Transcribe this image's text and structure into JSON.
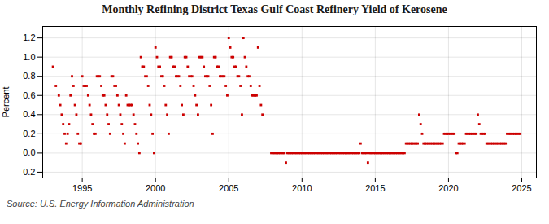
{
  "chart_data": {
    "type": "scatter",
    "title": "Monthly Refining District Texas Gulf Coast Refinery Yield of Kerosene",
    "ylabel": "Percent",
    "source": "Source: U.S. Energy Information Administration",
    "color": "#cc0000",
    "marker": "square",
    "grid": true,
    "xlim": [
      1992.3,
      2026.0
    ],
    "ylim": [
      -0.26,
      1.32
    ],
    "xticks": [
      1995,
      2000,
      2005,
      2010,
      2015,
      2020,
      2025
    ],
    "yticks": [
      -0.2,
      {
        "value": 0.0,
        "label": "0.0"
      },
      0.2,
      0.4,
      0.6,
      0.8,
      {
        "value": 1.0,
        "label": "1.0"
      },
      1.2
    ],
    "x": [
      1993.0,
      1993.2,
      1993.4,
      1993.5,
      1993.6,
      1993.7,
      1993.8,
      1993.9,
      1994.0,
      1994.1,
      1994.2,
      1994.3,
      1994.4,
      1994.5,
      1994.6,
      1994.7,
      1994.8,
      1994.9,
      1995.0,
      1995.1,
      1995.2,
      1995.3,
      1995.4,
      1995.5,
      1995.6,
      1995.7,
      1995.8,
      1995.9,
      1996.0,
      1996.1,
      1996.2,
      1996.3,
      1996.4,
      1996.5,
      1996.6,
      1996.7,
      1996.8,
      1996.9,
      1997.0,
      1997.1,
      1997.2,
      1997.3,
      1997.4,
      1997.5,
      1997.6,
      1997.7,
      1997.8,
      1997.9,
      1998.0,
      1998.1,
      1998.2,
      1998.3,
      1998.4,
      1998.5,
      1998.6,
      1998.7,
      1998.8,
      1998.9,
      1999.0,
      1999.1,
      1999.2,
      1999.3,
      1999.4,
      1999.5,
      1999.6,
      1999.7,
      1999.8,
      1999.9,
      2000.0,
      2000.1,
      2000.2,
      2000.3,
      2000.4,
      2000.5,
      2000.6,
      2000.7,
      2000.8,
      2000.9,
      2001.0,
      2001.1,
      2001.2,
      2001.3,
      2001.4,
      2001.5,
      2001.6,
      2001.7,
      2001.8,
      2001.9,
      2002.0,
      2002.1,
      2002.2,
      2002.3,
      2002.4,
      2002.5,
      2002.6,
      2002.7,
      2002.8,
      2002.9,
      2003.0,
      2003.1,
      2003.2,
      2003.3,
      2003.4,
      2003.5,
      2003.6,
      2003.7,
      2003.8,
      2003.9,
      2004.0,
      2004.1,
      2004.2,
      2004.3,
      2004.4,
      2004.5,
      2004.6,
      2004.7,
      2004.8,
      2004.9,
      2005.0,
      2005.1,
      2005.2,
      2005.3,
      2005.4,
      2005.5,
      2005.6,
      2005.7,
      2005.8,
      2005.9,
      2006.0,
      2006.1,
      2006.2,
      2006.3,
      2006.4,
      2006.5,
      2006.6,
      2006.7,
      2006.8,
      2006.9,
      2007.0,
      2007.1,
      2007.2,
      2007.3,
      2007.9,
      2008.0,
      2008.1,
      2008.2,
      2008.3,
      2008.4,
      2008.5,
      2008.6,
      2008.7,
      2008.8,
      2008.9,
      2009.0,
      2009.1,
      2009.2,
      2009.3,
      2009.4,
      2009.5,
      2009.6,
      2009.7,
      2009.8,
      2009.9,
      2010.0,
      2010.1,
      2010.2,
      2010.3,
      2010.4,
      2010.5,
      2010.6,
      2010.7,
      2010.8,
      2010.9,
      2011.0,
      2011.1,
      2011.2,
      2011.3,
      2011.4,
      2011.5,
      2011.6,
      2011.7,
      2011.8,
      2011.9,
      2012.0,
      2012.1,
      2012.2,
      2012.3,
      2012.4,
      2012.5,
      2012.6,
      2012.7,
      2012.8,
      2012.9,
      2013.0,
      2013.1,
      2013.2,
      2013.3,
      2013.4,
      2013.5,
      2013.6,
      2013.7,
      2013.8,
      2013.9,
      2014.0,
      2014.1,
      2014.2,
      2014.3,
      2014.4,
      2014.5,
      2014.6,
      2014.7,
      2014.8,
      2014.9,
      2015.0,
      2015.1,
      2015.2,
      2015.3,
      2015.4,
      2015.5,
      2015.6,
      2015.7,
      2015.8,
      2015.9,
      2016.0,
      2016.1,
      2016.2,
      2016.3,
      2016.4,
      2016.5,
      2016.6,
      2016.7,
      2016.8,
      2016.9,
      2017.0,
      2017.1,
      2017.2,
      2017.3,
      2017.4,
      2017.5,
      2017.6,
      2017.7,
      2017.8,
      2017.9,
      2018.0,
      2018.1,
      2018.2,
      2018.3,
      2018.4,
      2018.5,
      2018.6,
      2018.7,
      2018.8,
      2018.9,
      2019.0,
      2019.1,
      2019.2,
      2019.3,
      2019.4,
      2019.5,
      2019.6,
      2019.7,
      2019.8,
      2019.9,
      2020.0,
      2020.1,
      2020.2,
      2020.3,
      2020.4,
      2020.5,
      2020.6,
      2020.7,
      2020.8,
      2020.9,
      2021.0,
      2021.1,
      2021.2,
      2021.3,
      2021.4,
      2021.5,
      2021.6,
      2021.7,
      2021.8,
      2021.9,
      2022.0,
      2022.1,
      2022.2,
      2022.3,
      2022.4,
      2022.5,
      2022.6,
      2022.7,
      2022.8,
      2022.9,
      2023.0,
      2023.1,
      2023.2,
      2023.3,
      2023.4,
      2023.5,
      2023.6,
      2023.7,
      2023.8,
      2023.9,
      2024.0,
      2024.1,
      2024.2,
      2024.3,
      2024.4,
      2024.5,
      2024.6,
      2024.7,
      2024.8,
      2024.9
    ],
    "values": [
      0.9,
      0.7,
      0.6,
      0.5,
      0.4,
      0.3,
      0.2,
      0.1,
      0.2,
      0.3,
      0.6,
      0.8,
      0.7,
      0.5,
      0.4,
      0.2,
      0.1,
      0.1,
      0.8,
      0.7,
      0.7,
      0.7,
      0.6,
      0.5,
      0.4,
      0.3,
      0.2,
      0.2,
      0.8,
      0.8,
      0.8,
      0.7,
      0.6,
      0.6,
      0.5,
      0.4,
      0.3,
      0.2,
      0.8,
      0.8,
      0.7,
      0.7,
      0.6,
      0.5,
      0.4,
      0.3,
      0.2,
      0.1,
      0.6,
      0.5,
      0.5,
      0.5,
      0.5,
      0.4,
      0.3,
      0.2,
      0.1,
      0.0,
      1.0,
      0.9,
      0.9,
      0.8,
      0.8,
      0.7,
      0.5,
      0.4,
      0.2,
      0.0,
      1.1,
      1.0,
      0.9,
      0.9,
      0.8,
      0.8,
      0.7,
      0.5,
      0.4,
      0.2,
      1.0,
      1.0,
      0.9,
      0.9,
      0.8,
      0.8,
      0.8,
      0.7,
      0.5,
      0.4,
      1.0,
      1.0,
      0.9,
      0.8,
      0.8,
      0.8,
      0.7,
      0.6,
      0.5,
      0.4,
      1.0,
      1.0,
      1.0,
      0.9,
      0.8,
      0.8,
      0.8,
      0.7,
      0.5,
      0.2,
      1.0,
      1.0,
      0.9,
      0.9,
      0.8,
      0.8,
      0.8,
      0.8,
      0.7,
      0.6,
      1.2,
      1.1,
      1.0,
      1.0,
      0.9,
      0.9,
      0.8,
      0.8,
      0.7,
      0.4,
      1.2,
      1.0,
      0.9,
      0.8,
      0.8,
      0.7,
      0.6,
      0.6,
      0.6,
      0.6,
      1.1,
      0.7,
      0.5,
      0.4,
      0.0,
      0.0,
      0.0,
      0.0,
      0.0,
      0.0,
      0.0,
      0.0,
      0.0,
      0.0,
      -0.1,
      0.0,
      0.0,
      0.0,
      0.0,
      0.0,
      0.0,
      0.0,
      0.0,
      0.0,
      0.0,
      0.0,
      0.0,
      0.0,
      0.0,
      0.0,
      0.0,
      0.0,
      0.0,
      0.0,
      0.0,
      0.0,
      0.0,
      0.0,
      0.0,
      0.0,
      0.0,
      0.0,
      0.0,
      0.0,
      0.0,
      0.0,
      0.0,
      0.0,
      0.0,
      0.0,
      0.0,
      0.0,
      0.0,
      0.0,
      0.0,
      0.0,
      0.0,
      0.0,
      0.0,
      0.0,
      0.0,
      0.0,
      0.0,
      0.0,
      0.0,
      0.1,
      0.0,
      0.0,
      0.0,
      0.0,
      -0.1,
      0.0,
      0.0,
      0.0,
      0.0,
      0.0,
      0.0,
      0.0,
      0.0,
      0.0,
      0.0,
      0.0,
      0.0,
      0.0,
      0.0,
      0.0,
      0.0,
      0.0,
      0.0,
      0.0,
      0.0,
      0.0,
      0.0,
      0.0,
      0.0,
      0.0,
      0.1,
      0.1,
      0.1,
      0.1,
      0.1,
      0.1,
      0.1,
      0.1,
      0.1,
      0.4,
      0.3,
      0.2,
      0.1,
      0.1,
      0.1,
      0.1,
      0.1,
      0.1,
      0.1,
      0.1,
      0.1,
      0.1,
      0.1,
      0.1,
      0.1,
      0.1,
      0.2,
      0.2,
      0.2,
      0.2,
      0.2,
      0.2,
      0.2,
      0.2,
      0.0,
      0.0,
      0.1,
      0.1,
      0.1,
      0.1,
      0.1,
      0.2,
      0.2,
      0.2,
      0.2,
      0.2,
      0.2,
      0.2,
      0.2,
      0.4,
      0.3,
      0.2,
      0.2,
      0.2,
      0.2,
      0.1,
      0.1,
      0.1,
      0.1,
      0.1,
      0.1,
      0.1,
      0.1,
      0.1,
      0.1,
      0.1,
      0.1,
      0.1,
      0.1,
      0.2,
      0.2,
      0.2,
      0.2,
      0.2,
      0.2,
      0.2,
      0.2,
      0.2,
      0.2
    ]
  }
}
